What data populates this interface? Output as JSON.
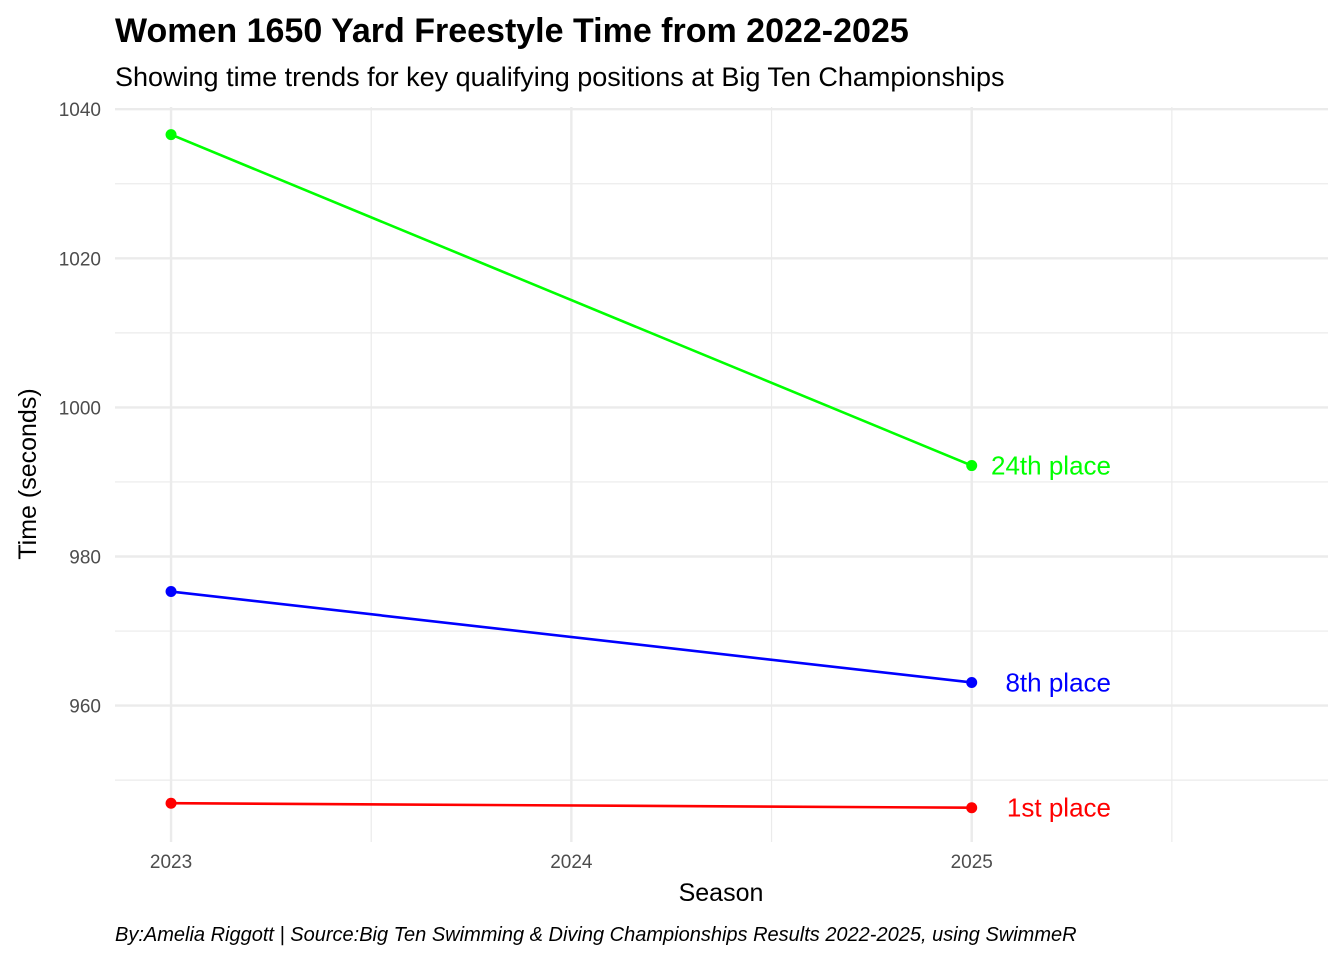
{
  "chart_data": {
    "type": "line",
    "title": "Women 1650 Yard Freestyle Time from 2022-2025",
    "subtitle": "Showing time trends for key qualifying positions at Big Ten Championships",
    "caption": "By:Amelia Riggott | Source:Big Ten Swimming & Diving Championships Results 2022-2025, using SwimmeR",
    "xlabel": "Season",
    "ylabel": "Time (seconds)",
    "x_ticks": [
      "2023",
      "2024",
      "2025"
    ],
    "y_ticks": [
      "960",
      "980",
      "1000",
      "1020",
      "1040"
    ],
    "xlim": [
      2022.86,
      2025.89
    ],
    "ylim": [
      941.7,
      1040.3
    ],
    "grid": true,
    "legend": "none",
    "series": [
      {
        "name": "1st place",
        "color": "#ff0000",
        "x": [
          2023,
          2025
        ],
        "y": [
          946.9,
          946.3
        ]
      },
      {
        "name": "8th place",
        "color": "#0000ff",
        "x": [
          2023,
          2025
        ],
        "y": [
          975.3,
          963.1
        ]
      },
      {
        "name": "24th place",
        "color": "#00ff00",
        "x": [
          2023,
          2025
        ],
        "y": [
          1036.6,
          992.2
        ]
      }
    ]
  }
}
